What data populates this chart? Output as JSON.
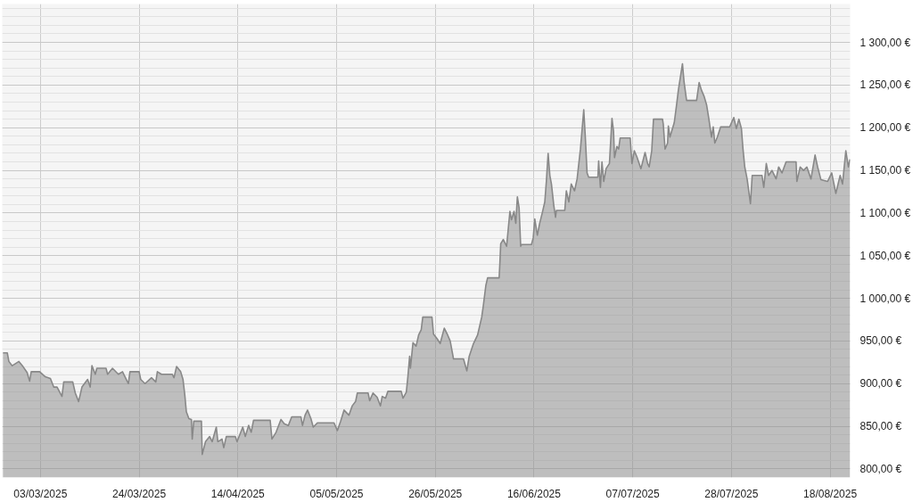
{
  "chart_data": {
    "type": "area",
    "x": [
      "2025-02-23T01:00",
      "2025-02-23T23:00",
      "2025-02-24T07:00",
      "2025-02-25T00:00",
      "2025-02-26T10:00",
      "2025-02-27T07:00",
      "2025-02-28T04:00",
      "2025-02-28T17:00",
      "2025-03-01T01:00",
      "2025-03-02T20:00",
      "2025-03-04T01:00",
      "2025-03-05T03:00",
      "2025-03-05T20:00",
      "2025-03-06T13:00",
      "2025-03-07T14:00",
      "2025-03-07T23:00",
      "2025-03-09T21:00",
      "2025-03-10T10:00",
      "2025-03-11T03:00",
      "2025-03-11T20:00",
      "2025-03-13T01:00",
      "2025-03-13T14:00",
      "2025-03-13T23:00",
      "2025-03-14T16:00",
      "2025-03-15T00:00",
      "2025-03-16T23:00",
      "2025-03-17T07:00",
      "2025-03-18T08:00",
      "2025-03-19T14:00",
      "2025-03-20T11:00",
      "2025-03-21T17:00",
      "2025-03-22T01:00",
      "2025-03-24T00:00",
      "2025-03-24T08:00",
      "2025-03-25T06:00",
      "2025-03-26T15:00",
      "2025-03-27T13:00",
      "2025-03-27T21:00",
      "2025-03-28T18:00",
      "2025-03-31T01:00",
      "2025-03-31T10:00",
      "2025-03-31T23:00",
      "2025-04-01T20:00",
      "2025-04-02T08:00",
      "2025-04-02T17:00",
      "2025-04-03T01:00",
      "2025-04-03T14:00",
      "2025-04-04T03:00",
      "2025-04-04T07:00",
      "2025-04-04T15:00",
      "2025-04-06T06:00",
      "2025-04-06T10:00",
      "2025-04-07T03:00",
      "2025-04-08T00:00",
      "2025-04-08T13:00",
      "2025-04-09T10:00",
      "2025-04-09T18:00",
      "2025-04-10T15:00",
      "2025-04-11T00:00",
      "2025-04-11T13:00",
      "2025-04-13T11:00",
      "2025-04-13T20:00",
      "2025-04-15T01:00",
      "2025-04-15T14:00",
      "2025-04-16T07:00",
      "2025-04-16T20:00",
      "2025-04-17T08:00",
      "2025-04-20T21:00",
      "2025-04-21T06:00",
      "2025-04-22T03:00",
      "2025-04-23T04:00",
      "2025-04-23T21:00",
      "2025-04-24T18:00",
      "2025-04-25T11:00",
      "2025-04-27T10:00",
      "2025-04-27T18:00",
      "2025-04-28T07:00",
      "2025-04-28T20:00",
      "2025-04-29T13:00",
      "2025-04-30T01:00",
      "2025-04-30T22:00",
      "2025-05-01T20:00",
      "2025-05-04T11:00",
      "2025-05-05T04:00",
      "2025-05-05T21:00",
      "2025-05-06T14:00",
      "2025-05-07T15:00",
      "2025-05-08T08:00",
      "2025-05-09T01:00",
      "2025-05-09T10:00",
      "2025-05-11T17:00",
      "2025-05-12T01:00",
      "2025-05-12T18:00",
      "2025-05-13T15:00",
      "2025-05-14T08:00",
      "2025-05-14T17:00",
      "2025-05-15T10:00",
      "2025-05-15T22:00",
      "2025-05-18T18:00",
      "2025-05-19T03:00",
      "2025-05-19T20:00",
      "2025-05-20T04:00",
      "2025-05-20T13:00",
      "2025-05-20T17:00",
      "2025-05-21T06:00",
      "2025-05-21T22:00",
      "2025-05-22T11:00",
      "2025-05-23T00:00",
      "2025-05-23T08:00",
      "2025-05-25T07:00",
      "2025-05-25T15:00",
      "2025-05-26T08:00",
      "2025-05-27T01:00",
      "2025-05-27T10:00",
      "2025-05-27T22:00",
      "2025-05-28T15:00",
      "2025-05-29T04:00",
      "2025-05-29T21:00",
      "2025-06-01T00:00",
      "2025-06-01T17:00",
      "2025-06-02T05:00",
      "2025-06-03T03:00",
      "2025-06-04T00:00",
      "2025-06-04T21:00",
      "2025-06-05T05:00",
      "2025-06-05T18:00",
      "2025-06-06T03:00",
      "2025-06-08T14:00",
      "2025-06-08T18:00",
      "2025-06-08T22:00",
      "2025-06-09T11:00",
      "2025-06-10T04:00",
      "2025-06-10T21:00",
      "2025-06-11T05:00",
      "2025-06-11T18:00",
      "2025-06-12T03:00",
      "2025-06-12T11:00",
      "2025-06-12T20:00",
      "2025-06-13T04:00",
      "2025-06-13T08:00",
      "2025-06-15T11:00",
      "2025-06-15T20:00",
      "2025-06-16T04:00",
      "2025-06-16T17:00",
      "2025-06-17T05:00",
      "2025-06-17T18:00",
      "2025-06-18T07:00",
      "2025-06-18T15:00",
      "2025-06-19T00:00",
      "2025-06-19T09:00",
      "2025-06-19T17:00",
      "2025-06-20T05:00",
      "2025-06-20T14:00",
      "2025-06-20T18:00",
      "2025-06-22T13:00",
      "2025-06-22T21:00",
      "2025-06-23T10:00",
      "2025-06-23T22:00",
      "2025-06-24T15:00",
      "2025-06-25T04:00",
      "2025-06-25T21:00",
      "2025-06-26T14:00",
      "2025-06-26T22:00",
      "2025-06-27T07:00",
      "2025-06-27T15:00",
      "2025-06-29T14:00",
      "2025-06-29T18:00",
      "2025-06-30T03:00",
      "2025-06-30T11:00",
      "2025-06-30T20:00",
      "2025-07-01T08:00",
      "2025-07-02T01:00",
      "2025-07-02T14:00",
      "2025-07-02T22:00",
      "2025-07-03T03:00",
      "2025-07-03T15:00",
      "2025-07-04T00:00",
      "2025-07-04T08:00",
      "2025-07-06T11:00",
      "2025-07-06T20:00",
      "2025-07-07T08:00",
      "2025-07-07T21:00",
      "2025-07-08T18:00",
      "2025-07-09T15:00",
      "2025-07-10T04:00",
      "2025-07-10T12:00",
      "2025-07-11T01:00",
      "2025-07-11T10:00",
      "2025-07-13T08:00",
      "2025-07-13T12:00",
      "2025-07-13T21:00",
      "2025-07-14T10:00",
      "2025-07-14T14:00",
      "2025-07-14T22:00",
      "2025-07-15T20:00",
      "2025-07-16T08:00",
      "2025-07-16T17:00",
      "2025-07-17T01:00",
      "2025-07-17T14:00",
      "2025-07-17T22:00",
      "2025-07-18T11:00",
      "2025-07-20T14:00",
      "2025-07-21T03:00",
      "2025-07-21T15:00",
      "2025-07-22T04:00",
      "2025-07-22T17:00",
      "2025-07-23T05:00",
      "2025-07-23T18:00",
      "2025-07-24T03:00",
      "2025-07-24T11:00",
      "2025-07-25T00:00",
      "2025-07-25T17:00",
      "2025-07-27T15:00",
      "2025-07-28T12:00",
      "2025-07-29T01:00",
      "2025-07-29T14:00",
      "2025-07-30T03:00",
      "2025-07-30T11:00",
      "2025-07-30T20:00",
      "2025-07-31T08:00",
      "2025-08-01T01:00",
      "2025-08-01T10:00",
      "2025-08-03T12:00",
      "2025-08-03T21:00",
      "2025-08-04T10:00",
      "2025-08-04T22:00",
      "2025-08-05T15:00",
      "2025-08-06T12:00",
      "2025-08-07T01:00",
      "2025-08-07T18:00",
      "2025-08-08T15:00",
      "2025-08-10T18:00",
      "2025-08-10T22:00",
      "2025-08-11T15:00",
      "2025-08-12T08:00",
      "2025-08-13T01:00",
      "2025-08-13T22:00",
      "2025-08-14T19:00",
      "2025-08-15T08:00",
      "2025-08-16T01:00",
      "2025-08-17T11:00",
      "2025-08-18T08:00",
      "2025-08-19T05:00",
      "2025-08-20T03:00",
      "2025-08-20T15:00",
      "2025-08-21T08:00",
      "2025-08-21T21:00",
      "2025-08-22T05:00"
    ],
    "series": [
      {
        "color": "#888888",
        "values": [
          936,
          936,
          926,
          921,
          926,
          920,
          913,
          903,
          914,
          914,
          908,
          906,
          896,
          896,
          885,
          902,
          902,
          889,
          879,
          896,
          905,
          896,
          921,
          911,
          918,
          918,
          911,
          918,
          911,
          914,
          900,
          914,
          914,
          905,
          900,
          907,
          902,
          914,
          911,
          911,
          907,
          920,
          914,
          905,
          887,
          867,
          859,
          858,
          835,
          856,
          856,
          817,
          832,
          838,
          832,
          849,
          832,
          835,
          825,
          838,
          838,
          832,
          849,
          838,
          851,
          843,
          857,
          857,
          835,
          843,
          858,
          853,
          851,
          861,
          861,
          851,
          863,
          869,
          859,
          849,
          854,
          854,
          854,
          845,
          856,
          869,
          863,
          874,
          879,
          889,
          889,
          880,
          889,
          884,
          874,
          885,
          883,
          891,
          891,
          883,
          890,
          908,
          932,
          918,
          948,
          944,
          957,
          963,
          978,
          978,
          958,
          953,
          947,
          955,
          965,
          957,
          950,
          929,
          929,
          915,
          932,
          947,
          957,
          978,
          991,
          1015,
          1024,
          1024,
          1043,
          1064,
          1069,
          1061,
          1102,
          1092,
          1102,
          1088,
          1119,
          1106,
          1061,
          1063,
          1063,
          1071,
          1093,
          1074,
          1088,
          1100,
          1113,
          1137,
          1170,
          1144,
          1134,
          1109,
          1095,
          1103,
          1103,
          1126,
          1113,
          1134,
          1126,
          1140,
          1175,
          1221,
          1189,
          1147,
          1142,
          1142,
          1161,
          1130,
          1160,
          1137,
          1152,
          1158,
          1211,
          1196,
          1165,
          1178,
          1175,
          1188,
          1188,
          1158,
          1173,
          1166,
          1152,
          1171,
          1158,
          1154,
          1173,
          1210,
          1210,
          1204,
          1175,
          1182,
          1202,
          1189,
          1206,
          1227,
          1244,
          1256,
          1275,
          1254,
          1232,
          1232,
          1253,
          1244,
          1237,
          1227,
          1210,
          1189,
          1201,
          1182,
          1189,
          1201,
          1201,
          1212,
          1199,
          1210,
          1199,
          1175,
          1154,
          1140,
          1111,
          1144,
          1144,
          1130,
          1158,
          1144,
          1150,
          1140,
          1154,
          1147,
          1160,
          1160,
          1137,
          1154,
          1150,
          1154,
          1140,
          1168,
          1154,
          1139,
          1137,
          1147,
          1123,
          1144,
          1134,
          1173,
          1154,
          1163
        ]
      }
    ],
    "xlim": [
      "2025-02-22T21:00",
      "2025-08-22T06:00"
    ],
    "xticks": [
      {
        "value": "2025-03-03",
        "label": "03/03/2025"
      },
      {
        "value": "2025-03-24",
        "label": "24/03/2025"
      },
      {
        "value": "2025-04-14",
        "label": "14/04/2025"
      },
      {
        "value": "2025-05-05",
        "label": "05/05/2025"
      },
      {
        "value": "2025-05-26",
        "label": "26/05/2025"
      },
      {
        "value": "2025-06-16",
        "label": "16/06/2025"
      },
      {
        "value": "2025-07-07",
        "label": "07/07/2025"
      },
      {
        "value": "2025-07-28",
        "label": "28/07/2025"
      },
      {
        "value": "2025-08-18",
        "label": "18/08/2025"
      }
    ],
    "ylim": [
      790,
      1345
    ],
    "yticks": [
      {
        "value": 800,
        "label": "800,00 €"
      },
      {
        "value": 850,
        "label": "850,00 €"
      },
      {
        "value": 900,
        "label": "900,00 €"
      },
      {
        "value": 950,
        "label": "950,00 €"
      },
      {
        "value": 1000,
        "label": "1 000,00 €"
      },
      {
        "value": 1050,
        "label": "1 050,00 €"
      },
      {
        "value": 1100,
        "label": "1 100,00 €"
      },
      {
        "value": 1150,
        "label": "1 150,00 €"
      },
      {
        "value": 1200,
        "label": "1 200,00 €"
      },
      {
        "value": 1250,
        "label": "1 250,00 €"
      },
      {
        "value": 1300,
        "label": "1 300,00 €"
      }
    ],
    "grid": true
  }
}
